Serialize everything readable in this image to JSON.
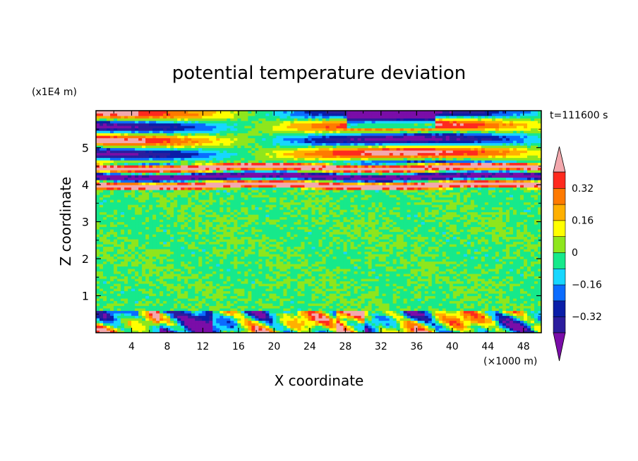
{
  "chart_data": {
    "type": "heatmap",
    "title": "potential temperature deviation",
    "xlabel": "X coordinate",
    "ylabel": "Z coordinate",
    "x_unit_label": "(×1000 m)",
    "y_unit_label": "(x1E4 m)",
    "time_label": "t=111600 s",
    "xlim": [
      0,
      50
    ],
    "ylim": [
      0,
      6
    ],
    "x_ticks": [
      4,
      8,
      12,
      16,
      20,
      24,
      28,
      32,
      36,
      40,
      44,
      48
    ],
    "y_ticks": [
      1,
      2,
      3,
      4,
      5
    ],
    "colorbar": {
      "levels": [
        -0.48,
        -0.4,
        -0.32,
        -0.24,
        -0.16,
        -0.08,
        0,
        0.08,
        0.16,
        0.24,
        0.32,
        0.4,
        0.48
      ],
      "colors": [
        "#7a0da8",
        "#2b1d9e",
        "#0a1ea8",
        "#0b6cff",
        "#17d7ff",
        "#16e98b",
        "#8ee61d",
        "#ffff00",
        "#ffb000",
        "#ff7a00",
        "#ff2a1e",
        "#f3a8ad"
      ],
      "tick_labels": [
        "0.32",
        "0.16",
        "0",
        "−0.16",
        "−0.32"
      ],
      "tick_values": [
        0.32,
        0.16,
        0,
        -0.16,
        -0.32
      ],
      "extend": "both"
    },
    "bands": [
      {
        "z": [
          0,
          0.6
        ],
        "pattern": "mixed-strong"
      },
      {
        "z": [
          0.6,
          3.9
        ],
        "pattern": "near-zero-noise"
      },
      {
        "z": [
          3.9,
          4.6
        ],
        "pattern": "alternating-strong"
      },
      {
        "z": [
          4.6,
          6.0
        ],
        "pattern": "layered-strong"
      }
    ]
  }
}
